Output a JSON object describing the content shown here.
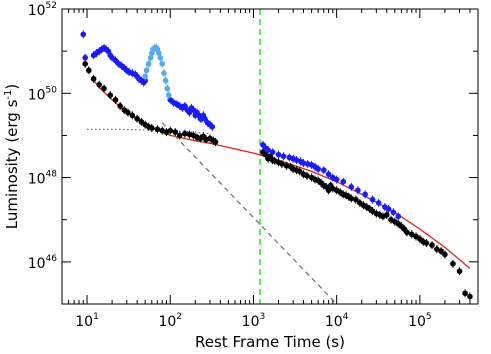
{
  "chart_data": {
    "type": "scatter",
    "title": "",
    "xlabel": "Rest Frame Time (s)",
    "ylabel": "Luminosity (erg s",
    "ylabel_sup": "-1",
    "ylabel_close": ")",
    "x_scale": "log",
    "y_scale": "log",
    "xlim": [
      5,
      500000
    ],
    "ylim": [
      1e+45,
      1e+52
    ],
    "x_ticks": [
      {
        "value": 10,
        "base": "10",
        "exp": "1"
      },
      {
        "value": 100,
        "base": "10",
        "exp": "2"
      },
      {
        "value": 1000,
        "base": "10",
        "exp": "3"
      },
      {
        "value": 10000,
        "base": "10",
        "exp": "4"
      },
      {
        "value": 100000,
        "base": "10",
        "exp": "5"
      }
    ],
    "y_ticks": [
      {
        "value": 1e+46,
        "base": "10",
        "exp": "46"
      },
      {
        "value": 1e+48,
        "base": "10",
        "exp": "48"
      },
      {
        "value": 1e+50,
        "base": "10",
        "exp": "50"
      },
      {
        "value": 1e+52,
        "base": "10",
        "exp": "52"
      }
    ],
    "grid": false,
    "legend": "none",
    "colors": {
      "black_points": "#000000",
      "blue_points": "#1a1aff",
      "lightblue_points": "#55aaee",
      "model_line": "#dd2222",
      "plateau_line": "#777777",
      "powerlaw_line": "#777777",
      "vertical_line": "#33dd33"
    },
    "vertical_line_x": 1200,
    "series": [
      {
        "color_key": "black_points",
        "style": "markers",
        "x": [
          9.5,
          10.5,
          12,
          14,
          16,
          19,
          22,
          25,
          28,
          31,
          35,
          40,
          45,
          50,
          55,
          60,
          70,
          80,
          90,
          100,
          115,
          130,
          150,
          170,
          190,
          210,
          230,
          250,
          270,
          300,
          330,
          350
        ],
        "y": [
          5e+50,
          3.5e+50,
          2.2e+50,
          1.6e+50,
          1.3e+50,
          9e+49,
          7e+49,
          5e+49,
          4e+49,
          3.5e+49,
          3e+49,
          2.5e+49,
          2.1e+49,
          1.8e+49,
          1.6e+49,
          1.5e+49,
          1.4e+49,
          1.3e+49,
          1.2e+49,
          1.3e+49,
          1.2e+49,
          1e+49,
          1.1e+49,
          1.05e+49,
          1e+49,
          9e+48,
          8.5e+48,
          9.5e+48,
          8e+48,
          8.5e+48,
          7.5e+48,
          7e+48
        ]
      },
      {
        "color_key": "black_points",
        "style": "markers",
        "x": [
          1300,
          1400,
          1500,
          1600,
          1700,
          1800,
          2000,
          2200,
          2500,
          2800,
          3000,
          3300,
          3600,
          4000,
          4400,
          5000,
          5500,
          6000,
          6500,
          7000,
          7500,
          8000,
          8500,
          9000,
          10000,
          11000,
          12000,
          13000,
          14000,
          15000,
          17000,
          19000,
          21000,
          23000,
          25000,
          27000,
          30000,
          33000,
          36000,
          40000,
          45000,
          50000,
          55000,
          60000,
          65000,
          70000,
          80000,
          90000,
          100000,
          110000,
          120000,
          140000,
          160000,
          180000,
          200000,
          250000,
          300000,
          350000,
          400000
        ],
        "y": [
          4e+48,
          3.5e+48,
          2.8e+48,
          3.2e+48,
          2.6e+48,
          2.5e+48,
          2.3e+48,
          2.1e+48,
          1.9e+48,
          1.8e+48,
          1.6e+48,
          1.5e+48,
          1.4e+48,
          1.2e+48,
          1.1e+48,
          1e+48,
          9e+47,
          8.5e+47,
          7.5e+47,
          6.5e+47,
          6e+47,
          5e+47,
          6.5e+47,
          5.5e+47,
          5e+47,
          4.5e+47,
          4e+47,
          3.8e+47,
          3.5e+47,
          3.2e+47,
          3e+47,
          2.5e+47,
          2.2e+47,
          2e+47,
          1.8e+47,
          1.6e+47,
          1.4e+47,
          1.3e+47,
          1.2e+47,
          1.3e+47,
          1e+47,
          9e+46,
          8e+46,
          7e+46,
          6e+46,
          5e+46,
          4.5e+46,
          4e+46,
          3.5e+46,
          3e+46,
          2.8e+46,
          2.5e+46,
          2e+46,
          1.8e+46,
          1.5e+46,
          9e+45,
          6e+45,
          1.8e+45,
          1.5e+45
        ]
      },
      {
        "color_key": "blue_points",
        "style": "markers",
        "x": [
          9,
          9.5,
          12,
          13,
          14,
          15,
          16,
          17,
          18,
          19,
          20,
          22,
          24,
          26,
          28,
          30,
          32,
          35,
          38,
          40,
          42,
          45,
          48,
          50,
          100,
          110,
          120,
          130,
          140,
          150,
          160,
          170,
          180,
          190,
          200,
          210,
          220,
          230,
          240,
          250,
          260,
          280,
          300,
          320
        ],
        "y": [
          2.5e+51,
          7e+50,
          8e+50,
          9e+50,
          1e+51,
          1.1e+51,
          1.2e+51,
          1.1e+51,
          1e+51,
          8e+50,
          7e+50,
          6e+50,
          5e+50,
          4.5e+50,
          4e+50,
          3.5e+50,
          3.2e+50,
          3e+50,
          2.8e+50,
          2.5e+50,
          2.2e+50,
          2e+50,
          1.8e+50,
          2e+50,
          7e+49,
          6e+49,
          5.5e+49,
          5e+49,
          4.5e+49,
          5e+49,
          4e+49,
          3.5e+49,
          4.5e+49,
          4e+49,
          3e+49,
          3.5e+49,
          3e+49,
          2.5e+49,
          2.5e+49,
          3e+49,
          2.5e+49,
          2e+49,
          1.8e+49,
          1.6e+49
        ]
      },
      {
        "color_key": "lightblue_points",
        "style": "markers",
        "x": [
          50,
          52,
          55,
          58,
          60,
          62,
          65,
          68,
          70,
          73,
          76,
          80,
          84,
          88,
          92,
          96
        ],
        "y": [
          2.5e+50,
          3.5e+50,
          5e+50,
          7e+50,
          9e+50,
          1.1e+51,
          1.2e+51,
          1.2e+51,
          1.1e+51,
          9e+50,
          7e+50,
          5e+50,
          3e+50,
          2e+50,
          1.3e+50,
          9e+49
        ]
      },
      {
        "color_key": "blue_points",
        "style": "markers",
        "x": [
          1300,
          1400,
          1500,
          1700,
          2000,
          2300,
          2700,
          3000,
          3300,
          3700,
          4000,
          4500,
          5000,
          5500,
          6000,
          7000,
          8000,
          9000,
          10000,
          12000,
          15000,
          18000,
          22000,
          27000,
          32000,
          38000,
          42000,
          48000,
          55000
        ],
        "y": [
          6e+48,
          5e+48,
          4.5e+48,
          4e+48,
          3.5e+48,
          3.2e+48,
          3e+48,
          2.8e+48,
          2.6e+48,
          2.4e+48,
          2.2e+48,
          2.1e+48,
          2e+48,
          1.8e+48,
          1.6e+48,
          1.5e+48,
          1.2e+48,
          1e+48,
          9e+47,
          8e+47,
          6e+47,
          5e+47,
          4e+47,
          3e+47,
          2.5e+47,
          2e+47,
          1.8e+47,
          1.5e+47,
          1.2e+47
        ]
      },
      {
        "color_key": "model_line",
        "style": "line",
        "x": [
          12,
          15,
          20,
          30,
          50,
          100,
          200,
          300,
          500,
          1000,
          2000,
          5000,
          10000,
          20000,
          50000,
          100000,
          200000,
          400000
        ],
        "y": [
          2e+50,
          1.2e+50,
          7e+49,
          3.5e+49,
          1.8e+49,
          1e+49,
          7.5e+48,
          6.5e+48,
          5.2e+48,
          3.8e+48,
          2.6e+48,
          1.4e+48,
          8e+47,
          4e+47,
          1.5e+47,
          6e+46,
          2.2e+46,
          7e+45
        ]
      },
      {
        "color_key": "plateau_line",
        "style": "dotted",
        "x": [
          10,
          20,
          50,
          100,
          200,
          300
        ],
        "y": [
          1.4e+49,
          1.4e+49,
          1.35e+49,
          1.3e+49,
          1.2e+49,
          1.1e+49
        ]
      },
      {
        "color_key": "powerlaw_line",
        "style": "dashed",
        "x": [
          80,
          10000
        ],
        "y": [
          2e+49,
          1e+45
        ]
      }
    ]
  }
}
